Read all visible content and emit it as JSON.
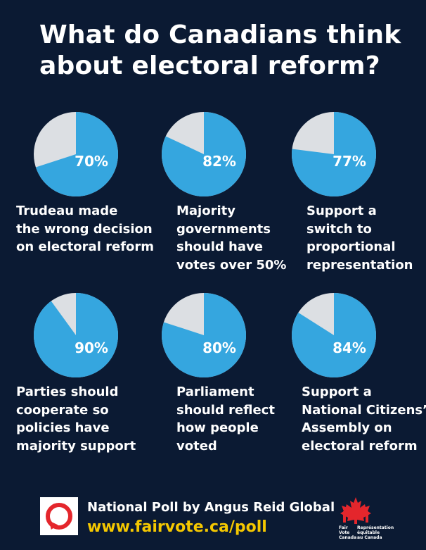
{
  "title": {
    "line1": "What do Canadians think",
    "line2": "about electoral reform?"
  },
  "colors": {
    "background": "#0b1a33",
    "pie_fill": "#35a6df",
    "pie_remainder": "#dcdfe3",
    "url_text": "#f5c800",
    "logo_red": "#e4262c"
  },
  "chart_data": [
    {
      "type": "pie",
      "values": [
        70,
        30
      ],
      "label": "70%",
      "caption": [
        "Trudeau made",
        "the wrong decision",
        "on electoral reform"
      ]
    },
    {
      "type": "pie",
      "values": [
        82,
        18
      ],
      "label": "82%",
      "caption": [
        "Majority",
        "governments",
        "should have",
        "votes over 50%"
      ]
    },
    {
      "type": "pie",
      "values": [
        77,
        23
      ],
      "label": "77%",
      "caption": [
        "Support a",
        "switch to",
        "proportional",
        "representation"
      ]
    },
    {
      "type": "pie",
      "values": [
        90,
        10
      ],
      "label": "90%",
      "caption": [
        "Parties should",
        "cooperate so",
        "policies have",
        "majority support"
      ]
    },
    {
      "type": "pie",
      "values": [
        80,
        20
      ],
      "label": "80%",
      "caption": [
        "Parliament",
        "should reflect",
        "how people",
        "voted"
      ]
    },
    {
      "type": "pie",
      "values": [
        84,
        16
      ],
      "label": "84%",
      "caption": [
        "Support a",
        "National Citizens’",
        "Assembly on",
        "electoral reform"
      ]
    }
  ],
  "footer": {
    "poll_text": "National Poll by Angus Reid Global",
    "url": "www.fairvote.ca/poll",
    "logo_icon": "speech-bubble-icon",
    "org_logo_icon": "maple-leaf-icon",
    "org_text": {
      "en1": "Fair",
      "en2": "Vote",
      "en3": "Canada",
      "fr1": "Représentation",
      "fr2": "équitable",
      "fr3": "au Canada"
    }
  }
}
